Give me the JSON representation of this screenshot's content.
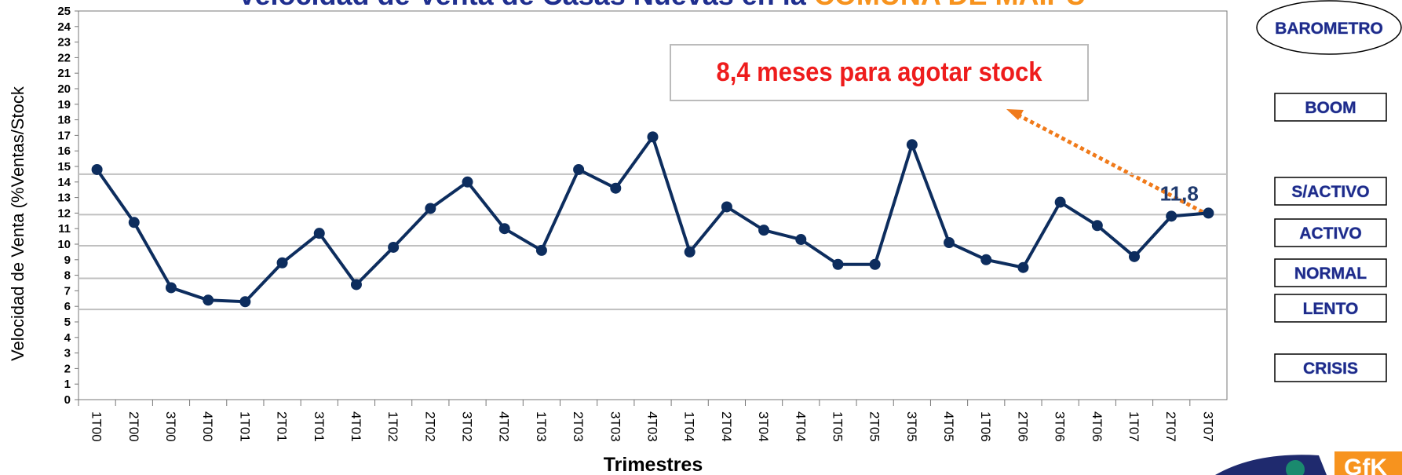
{
  "chart_data": {
    "type": "line",
    "title": [
      "Velocidad de Venta de Casas Nuevas en la ",
      "COMUNA DE MAIPU"
    ],
    "xlabel": "Trimestres",
    "ylabel": "Velocidad de Venta (%Ventas/Stock",
    "categories": [
      "1T00",
      "2T00",
      "3T00",
      "4T00",
      "1T01",
      "2T01",
      "3T01",
      "4T01",
      "1T02",
      "2T02",
      "3T02",
      "4T02",
      "1T03",
      "2T03",
      "3T03",
      "4T03",
      "1T04",
      "2T04",
      "3T04",
      "4T04",
      "1T05",
      "2T05",
      "3T05",
      "4T05",
      "1T06",
      "2T06",
      "3T06",
      "4T06",
      "1T07",
      "2T07",
      "3T07"
    ],
    "series": [
      {
        "name": "Velocidad de Venta",
        "color": "#0d2d5e",
        "values": [
          14.8,
          11.4,
          7.2,
          6.4,
          6.3,
          8.8,
          10.7,
          7.4,
          9.8,
          12.3,
          14.0,
          11.0,
          9.6,
          14.8,
          13.6,
          16.9,
          9.5,
          12.4,
          10.9,
          10.3,
          8.7,
          8.7,
          16.4,
          10.1,
          9.0,
          8.5,
          12.7,
          11.2,
          9.2,
          11.8,
          12.0
        ],
        "value_labels": [
          null,
          null,
          null,
          null,
          null,
          null,
          null,
          null,
          null,
          null,
          null,
          null,
          null,
          null,
          null,
          null,
          null,
          null,
          null,
          null,
          null,
          null,
          null,
          null,
          null,
          null,
          null,
          null,
          null,
          "11,8",
          null
        ]
      }
    ],
    "ylim": [
      0,
      25
    ],
    "yticks": [
      0,
      1,
      2,
      3,
      4,
      5,
      6,
      7,
      8,
      9,
      10,
      11,
      12,
      13,
      14,
      15,
      16,
      17,
      18,
      19,
      20,
      21,
      22,
      23,
      24,
      25
    ],
    "reference_lines": [
      14.5,
      11.9,
      9.9,
      7.8,
      5.8
    ],
    "annotation": "8,4 meses para agotar stock",
    "buttons": [
      "BAROMETRO",
      "BOOM",
      "S/ACTIVO",
      "ACTIVO",
      "NORMAL",
      "LENTO",
      "CRISIS"
    ],
    "logo": "GfK"
  }
}
